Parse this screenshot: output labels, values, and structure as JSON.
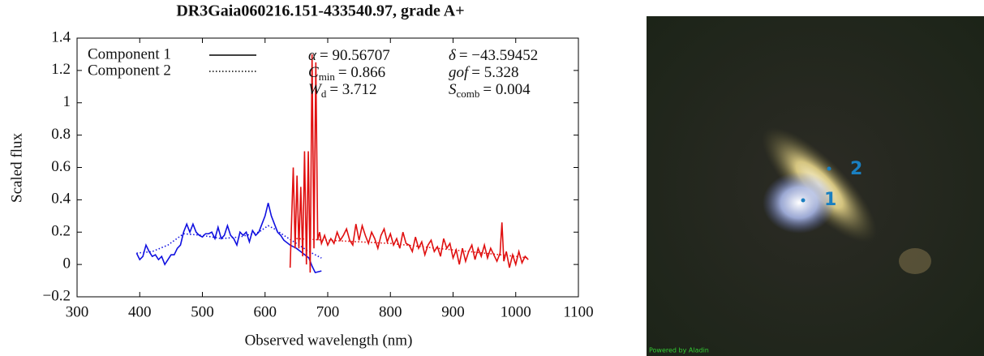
{
  "chart_data": {
    "type": "line",
    "title": "DR3Gaia060216.151-433540.97, grade A+",
    "x_label": "Observed wavelength (nm)",
    "y_label": "Scaled flux",
    "xlim": [
      300,
      1100
    ],
    "xticks": [
      300,
      400,
      500,
      600,
      700,
      800,
      900,
      1000,
      1100
    ],
    "ylim": [
      -0.2,
      1.4
    ],
    "yticks": [
      {
        "value": -0.2,
        "label": "−0.2"
      },
      0,
      0.2,
      0.4,
      0.6,
      0.8,
      1,
      1.2,
      1.4
    ],
    "legend": [
      {
        "name": "Component 1",
        "dash": "solid"
      },
      {
        "name": "Component 2",
        "dash": "dotted"
      }
    ],
    "annotations": [
      {
        "symbol": "α",
        "sub": "",
        "text": "= 90.56707"
      },
      {
        "symbol": "δ",
        "sub": "",
        "text": "= −43.59452"
      },
      {
        "symbol": "C",
        "sub": "min",
        "text": "= 0.866"
      },
      {
        "symbol": "gof",
        "sub": "",
        "text": "= 5.328"
      },
      {
        "symbol": "W",
        "sub": "d",
        "text": "= 3.712"
      },
      {
        "symbol": "S",
        "sub": "comb",
        "text": "= 0.004"
      }
    ],
    "series": [
      {
        "color": "#1010e0",
        "dash": "solid",
        "x": [
          395,
          400,
          405,
          410,
          415,
          420,
          425,
          430,
          435,
          440,
          445,
          450,
          455,
          460,
          465,
          470,
          475,
          480,
          485,
          490,
          495,
          500,
          505,
          510,
          515,
          520,
          525,
          530,
          535,
          540,
          545,
          550,
          555,
          560,
          565,
          570,
          575,
          580,
          585,
          590,
          595,
          600,
          605,
          610,
          615,
          620,
          625,
          630,
          640,
          650,
          660,
          670,
          675,
          680,
          690
        ],
        "values": [
          0.07,
          0.03,
          0.05,
          0.12,
          0.08,
          0.05,
          0.06,
          0.03,
          0.05,
          0,
          0.03,
          0.06,
          0.06,
          0.1,
          0.12,
          0.2,
          0.25,
          0.2,
          0.25,
          0.2,
          0.18,
          0.17,
          0.19,
          0.19,
          0.2,
          0.16,
          0.23,
          0.16,
          0.18,
          0.24,
          0.18,
          0.16,
          0.12,
          0.2,
          0.18,
          0.2,
          0.14,
          0.21,
          0.18,
          0.2,
          0.25,
          0.3,
          0.38,
          0.3,
          0.25,
          0.2,
          0.18,
          0.15,
          0.12,
          0.1,
          0.07,
          0.04,
          -0.01,
          -0.05,
          -0.04
        ]
      },
      {
        "color": "#1010e0",
        "dash": "dotted",
        "x": [
          395,
          420,
          445,
          470,
          500,
          530,
          560,
          590,
          605,
          615,
          630,
          650,
          670,
          690
        ],
        "values": [
          0.07,
          0.08,
          0.12,
          0.19,
          0.18,
          0.16,
          0.17,
          0.2,
          0.24,
          0.22,
          0.18,
          0.13,
          0.08,
          0.04
        ]
      },
      {
        "color": "#e01010",
        "dash": "solid",
        "x": [
          640,
          645,
          648,
          651,
          654,
          657,
          660,
          663,
          666,
          669,
          672,
          675,
          678,
          681,
          684,
          687,
          690,
          695,
          700,
          705,
          710,
          715,
          720,
          725,
          730,
          735,
          740,
          745,
          750,
          755,
          760,
          765,
          770,
          775,
          780,
          785,
          790,
          795,
          800,
          805,
          810,
          815,
          820,
          825,
          830,
          835,
          840,
          845,
          850,
          855,
          860,
          865,
          870,
          875,
          880,
          885,
          890,
          895,
          900,
          905,
          910,
          915,
          920,
          925,
          930,
          935,
          940,
          945,
          950,
          955,
          960,
          965,
          970,
          975,
          978,
          981,
          985,
          990,
          995,
          1000,
          1005,
          1010,
          1015,
          1020
        ],
        "values": [
          -0.02,
          0.6,
          0.1,
          0.55,
          0.1,
          0.48,
          0.05,
          0.7,
          0,
          0.7,
          -0.05,
          1.3,
          0.1,
          1.25,
          0.15,
          0.2,
          0.13,
          0.18,
          0.12,
          0.16,
          0.13,
          0.2,
          0.15,
          0.18,
          0.22,
          0.15,
          0.12,
          0.25,
          0.15,
          0.24,
          0.18,
          0.13,
          0.2,
          0.16,
          0.1,
          0.18,
          0.22,
          0.14,
          0.19,
          0.12,
          0.16,
          0.1,
          0.2,
          0.13,
          0.12,
          0.08,
          0.17,
          0.1,
          0.14,
          0.06,
          0.12,
          0.15,
          0.08,
          0.11,
          0.05,
          0.16,
          0.1,
          0.13,
          0.04,
          0.09,
          0.0,
          0.1,
          0.02,
          0.08,
          0.12,
          0.03,
          0.1,
          0.05,
          0.12,
          0.04,
          0.1,
          0.06,
          0.02,
          0.07,
          0.26,
          0.02,
          0.08,
          -0.02,
          0.06,
          0.0,
          0.08,
          0.01,
          0.05,
          0.03
        ]
      },
      {
        "color": "#e01010",
        "dash": "dotted",
        "x": [
          650,
          700,
          750,
          800,
          850,
          900,
          950,
          1000,
          1020
        ],
        "values": [
          0.16,
          0.15,
          0.14,
          0.13,
          0.11,
          0.09,
          0.07,
          0.05,
          0.04
        ]
      }
    ]
  },
  "image": {
    "markers": [
      {
        "label": "1"
      },
      {
        "label": "2"
      }
    ],
    "credit": "Powered by Aladin"
  }
}
